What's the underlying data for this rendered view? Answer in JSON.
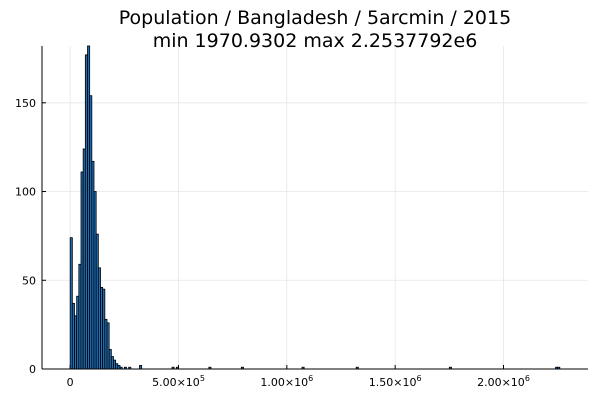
{
  "chart_data": {
    "type": "bar",
    "title_lines": [
      "Population / Bangladesh / 5arcmin / 2015",
      "min 1970.9302  max 2.2537792e6"
    ],
    "xlim": [
      -130000,
      2390000
    ],
    "ylim": [
      0,
      182
    ],
    "bin_width": 10000,
    "xticks": [
      {
        "value": 0,
        "mantissa": "0",
        "exp": ""
      },
      {
        "value": 500000,
        "mantissa": "5.00×10",
        "exp": "5"
      },
      {
        "value": 1000000,
        "mantissa": "1.00×10",
        "exp": "6"
      },
      {
        "value": 1500000,
        "mantissa": "1.50×10",
        "exp": "6"
      },
      {
        "value": 2000000,
        "mantissa": "2.00×10",
        "exp": "6"
      }
    ],
    "yticks": [
      {
        "value": 0,
        "label": "0"
      },
      {
        "value": 50,
        "label": "50"
      },
      {
        "value": 100,
        "label": "100"
      },
      {
        "value": 150,
        "label": "150"
      }
    ],
    "grid": true,
    "bar_color": "#1f6fb8",
    "bins": [
      {
        "x": 0,
        "count": 74
      },
      {
        "x": 10000,
        "count": 37
      },
      {
        "x": 20000,
        "count": 30
      },
      {
        "x": 30000,
        "count": 41
      },
      {
        "x": 40000,
        "count": 59
      },
      {
        "x": 50000,
        "count": 111
      },
      {
        "x": 60000,
        "count": 124
      },
      {
        "x": 70000,
        "count": 177
      },
      {
        "x": 80000,
        "count": 182
      },
      {
        "x": 90000,
        "count": 154
      },
      {
        "x": 100000,
        "count": 117
      },
      {
        "x": 110000,
        "count": 100
      },
      {
        "x": 120000,
        "count": 76
      },
      {
        "x": 130000,
        "count": 57
      },
      {
        "x": 140000,
        "count": 46
      },
      {
        "x": 150000,
        "count": 45
      },
      {
        "x": 160000,
        "count": 28
      },
      {
        "x": 170000,
        "count": 26
      },
      {
        "x": 180000,
        "count": 11
      },
      {
        "x": 190000,
        "count": 7
      },
      {
        "x": 200000,
        "count": 5
      },
      {
        "x": 210000,
        "count": 3
      },
      {
        "x": 220000,
        "count": 2
      },
      {
        "x": 230000,
        "count": 1
      },
      {
        "x": 250000,
        "count": 1
      },
      {
        "x": 270000,
        "count": 1
      },
      {
        "x": 320000,
        "count": 2
      },
      {
        "x": 470000,
        "count": 1
      },
      {
        "x": 490000,
        "count": 1
      },
      {
        "x": 640000,
        "count": 1
      },
      {
        "x": 790000,
        "count": 1
      },
      {
        "x": 1070000,
        "count": 1
      },
      {
        "x": 1320000,
        "count": 1
      },
      {
        "x": 1750000,
        "count": 1
      },
      {
        "x": 2240000,
        "count": 1
      },
      {
        "x": 2250000,
        "count": 1
      }
    ]
  }
}
